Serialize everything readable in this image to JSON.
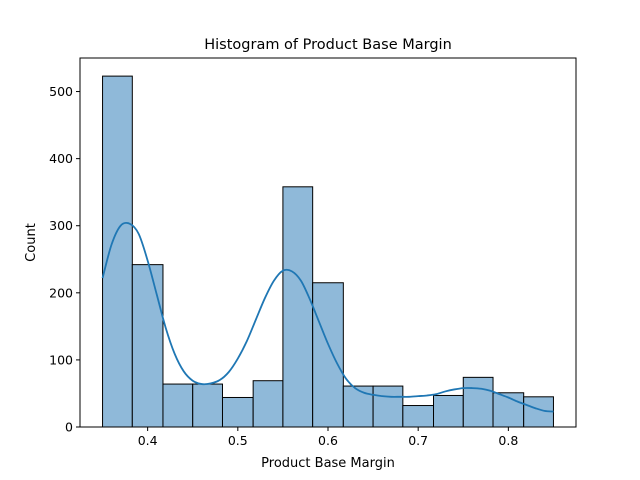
{
  "chart_data": {
    "type": "bar",
    "title": "Histogram of Product Base Margin",
    "xlabel": "Product Base Margin",
    "ylabel": "Count",
    "xlim": [
      0.325,
      0.875
    ],
    "ylim": [
      0,
      550
    ],
    "x_ticks": [
      0.4,
      0.5,
      0.6,
      0.7,
      0.8
    ],
    "y_ticks": [
      0,
      100,
      200,
      300,
      400,
      500
    ],
    "grid": false,
    "legend": "none",
    "bins": [
      {
        "x0": 0.35,
        "x1": 0.383,
        "count": 523
      },
      {
        "x0": 0.383,
        "x1": 0.417,
        "count": 242
      },
      {
        "x0": 0.417,
        "x1": 0.45,
        "count": 64
      },
      {
        "x0": 0.45,
        "x1": 0.483,
        "count": 64
      },
      {
        "x0": 0.483,
        "x1": 0.517,
        "count": 44
      },
      {
        "x0": 0.517,
        "x1": 0.55,
        "count": 69
      },
      {
        "x0": 0.55,
        "x1": 0.583,
        "count": 358
      },
      {
        "x0": 0.583,
        "x1": 0.617,
        "count": 215
      },
      {
        "x0": 0.617,
        "x1": 0.65,
        "count": 61
      },
      {
        "x0": 0.65,
        "x1": 0.683,
        "count": 61
      },
      {
        "x0": 0.683,
        "x1": 0.717,
        "count": 32
      },
      {
        "x0": 0.717,
        "x1": 0.75,
        "count": 47
      },
      {
        "x0": 0.75,
        "x1": 0.783,
        "count": 74
      },
      {
        "x0": 0.783,
        "x1": 0.817,
        "count": 51
      },
      {
        "x0": 0.817,
        "x1": 0.85,
        "count": 45
      }
    ],
    "kde": {
      "x": [
        0.35,
        0.36,
        0.37,
        0.38,
        0.39,
        0.4,
        0.41,
        0.42,
        0.43,
        0.44,
        0.45,
        0.46,
        0.47,
        0.48,
        0.49,
        0.5,
        0.51,
        0.52,
        0.53,
        0.54,
        0.55,
        0.56,
        0.57,
        0.58,
        0.59,
        0.6,
        0.61,
        0.62,
        0.63,
        0.64,
        0.65,
        0.66,
        0.67,
        0.68,
        0.69,
        0.7,
        0.71,
        0.72,
        0.73,
        0.74,
        0.75,
        0.76,
        0.77,
        0.78,
        0.79,
        0.8,
        0.81,
        0.82,
        0.83,
        0.84,
        0.85
      ],
      "y": [
        222,
        272,
        300,
        303,
        288,
        248,
        198,
        148,
        109,
        83,
        69,
        64,
        65,
        70,
        82,
        102,
        128,
        160,
        192,
        218,
        233,
        232,
        218,
        190,
        157,
        124,
        95,
        72,
        58,
        51,
        48,
        46,
        45,
        45,
        45,
        46,
        47,
        49,
        53,
        56,
        58,
        58,
        57,
        54,
        49,
        44,
        38,
        33,
        28,
        24,
        23
      ]
    },
    "bar_color": "#8fb9d9",
    "edge_color": "#000000",
    "line_color": "#1f77b4"
  }
}
